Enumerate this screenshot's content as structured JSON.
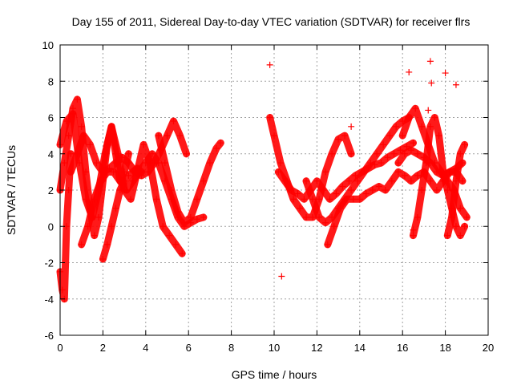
{
  "chart_data": {
    "type": "scatter",
    "title": "Day 155 of 2011, Sidereal Day-to-day VTEC variation (SDTVAR) for receiver flrs",
    "xlabel": "GPS time / hours",
    "ylabel": "SDTVAR / TECUs",
    "xlim": [
      0,
      20
    ],
    "ylim": [
      -6,
      10
    ],
    "xticks": [
      "0",
      "2",
      "4",
      "6",
      "8",
      "10",
      "12",
      "14",
      "16",
      "18",
      "20"
    ],
    "yticks": [
      "-6",
      "-4",
      "-2",
      "0",
      "2",
      "4",
      "6",
      "8",
      "10"
    ],
    "grid": true,
    "marker": "+",
    "color": "#ff0000",
    "series": [
      {
        "name": "SDTVAR",
        "tracks": [
          {
            "x": [
              0.0,
              0.3,
              0.6,
              0.9,
              1.2,
              1.5,
              1.8,
              2.1,
              2.4,
              2.7,
              3.0,
              3.3,
              3.6,
              3.9,
              4.2,
              4.5,
              4.8,
              5.1,
              5.4,
              5.7
            ],
            "y": [
              4.5,
              5.8,
              6.2,
              3.5,
              1.5,
              0.5,
              2.0,
              4.0,
              5.5,
              4.0,
              2.0,
              1.5,
              3.0,
              4.5,
              3.5,
              1.5,
              0.0,
              -0.5,
              -1.0,
              -1.5
            ]
          },
          {
            "x": [
              0.0,
              0.2,
              0.4,
              0.6,
              0.8,
              1.0,
              1.2,
              1.4,
              1.6,
              1.8,
              2.0,
              2.2,
              2.4,
              2.6,
              2.8,
              3.0,
              3.2
            ],
            "y": [
              2.0,
              3.5,
              5.0,
              6.5,
              7.0,
              5.5,
              3.0,
              1.0,
              -0.5,
              0.5,
              2.5,
              4.5,
              5.5,
              4.0,
              2.5,
              3.0,
              4.0
            ]
          },
          {
            "x": [
              0.5,
              0.8,
              1.1,
              1.4,
              1.7,
              2.0,
              2.3,
              2.6,
              2.9,
              3.2,
              3.5,
              3.8,
              4.1,
              4.4,
              4.7,
              5.0,
              5.3,
              5.6,
              5.9
            ],
            "y": [
              3.0,
              4.0,
              5.0,
              4.5,
              3.5,
              3.0,
              3.2,
              3.5,
              3.8,
              3.5,
              3.0,
              2.8,
              3.0,
              3.5,
              4.2,
              5.0,
              5.8,
              5.0,
              4.0
            ]
          },
          {
            "x": [
              1.0,
              1.3,
              1.6,
              1.9,
              2.2,
              2.5,
              2.8,
              3.1,
              3.4,
              3.7,
              4.0,
              4.3,
              4.6,
              4.9,
              5.2,
              5.5,
              5.8,
              6.1,
              6.4,
              6.7
            ],
            "y": [
              -1.0,
              0.0,
              1.5,
              2.5,
              3.0,
              3.0,
              2.5,
              2.0,
              2.5,
              3.0,
              3.5,
              4.0,
              3.5,
              2.5,
              1.5,
              0.5,
              0.0,
              0.2,
              0.4,
              0.5
            ]
          },
          {
            "x": [
              4.6,
              4.9,
              5.2,
              5.5,
              5.8,
              6.1,
              6.4,
              6.7,
              7.0,
              7.3,
              7.5
            ],
            "y": [
              5.0,
              3.5,
              2.0,
              0.8,
              0.2,
              0.5,
              1.5,
              2.5,
              3.5,
              4.3,
              4.6
            ]
          },
          {
            "x": [
              0.0,
              0.1,
              0.2,
              0.3,
              0.4,
              0.5
            ],
            "y": [
              -2.5,
              -3.5,
              -4.0,
              0.0,
              2.0,
              4.0
            ]
          },
          {
            "x": [
              2.0,
              2.2,
              2.4,
              2.6,
              2.8,
              3.0,
              3.2,
              3.4,
              3.6,
              3.8
            ],
            "y": [
              -1.8,
              -1.0,
              0.0,
              1.0,
              2.0,
              2.5,
              2.8,
              3.0,
              3.2,
              3.0
            ]
          },
          {
            "x": [
              9.8,
              10.0,
              10.3,
              10.6,
              10.9,
              11.2,
              11.5,
              11.8,
              12.1,
              12.4,
              12.7,
              13.0,
              13.3,
              13.6
            ],
            "y": [
              6.0,
              5.0,
              3.5,
              2.5,
              1.5,
              1.0,
              0.5,
              0.5,
              1.5,
              3.0,
              4.0,
              4.8,
              5.0,
              4.0
            ]
          },
          {
            "x": [
              10.2,
              10.5,
              10.8,
              11.1,
              11.4,
              11.7,
              12.0,
              12.3,
              12.6,
              12.9,
              13.2,
              13.5,
              13.8,
              14.1,
              14.4,
              14.7,
              15.0,
              15.3,
              15.6,
              15.9,
              16.2,
              16.5
            ],
            "y": [
              3.0,
              2.5,
              2.0,
              1.8,
              1.5,
              2.0,
              2.5,
              2.0,
              1.5,
              1.8,
              2.2,
              2.5,
              2.8,
              3.0,
              3.2,
              3.4,
              3.5,
              3.8,
              4.0,
              4.2,
              4.4,
              4.6
            ]
          },
          {
            "x": [
              11.5,
              11.8,
              12.1,
              12.4,
              12.7,
              13.0,
              13.3,
              13.6,
              13.9,
              14.2,
              14.5,
              14.8,
              15.1,
              15.4,
              15.7,
              16.0,
              16.3
            ],
            "y": [
              2.5,
              1.5,
              0.5,
              0.2,
              0.5,
              1.0,
              1.5,
              2.0,
              2.5,
              3.0,
              3.5,
              4.0,
              4.5,
              5.0,
              5.5,
              5.8,
              6.0
            ]
          },
          {
            "x": [
              12.5,
              12.8,
              13.1,
              13.4,
              13.7,
              14.0,
              14.3,
              14.6,
              14.9,
              15.2,
              15.5,
              15.8,
              16.1,
              16.4,
              16.7,
              17.0,
              17.3,
              17.6,
              17.9,
              18.2,
              18.5,
              18.8
            ],
            "y": [
              -1.0,
              0.0,
              1.0,
              1.5,
              1.5,
              1.5,
              1.8,
              2.0,
              2.2,
              2.0,
              2.5,
              3.0,
              2.8,
              2.5,
              2.8,
              3.0,
              2.5,
              2.0,
              2.5,
              3.0,
              3.0,
              2.5
            ]
          },
          {
            "x": [
              15.8,
              16.1,
              16.4,
              16.7,
              17.0,
              17.3,
              17.6,
              17.9,
              18.2,
              18.5,
              18.8
            ],
            "y": [
              3.5,
              4.0,
              4.2,
              4.0,
              3.8,
              3.5,
              3.0,
              2.8,
              3.0,
              3.2,
              3.5
            ]
          },
          {
            "x": [
              16.5,
              16.7,
              16.9,
              17.1,
              17.3,
              17.5,
              17.7,
              17.9,
              18.1,
              18.3,
              18.5,
              18.7,
              18.9
            ],
            "y": [
              -0.5,
              0.5,
              2.0,
              3.5,
              5.5,
              6.0,
              5.0,
              3.0,
              2.0,
              1.0,
              0.0,
              -0.5,
              0.0
            ]
          },
          {
            "x": [
              16.0,
              16.3,
              16.6,
              16.9,
              17.2,
              17.5,
              17.8,
              18.1,
              18.4,
              18.7,
              19.0
            ],
            "y": [
              5.0,
              6.0,
              6.5,
              5.5,
              4.5,
              3.5,
              3.0,
              2.5,
              2.0,
              1.0,
              0.5
            ]
          },
          {
            "x": [
              18.1,
              18.3,
              18.5,
              18.7,
              18.9
            ],
            "y": [
              -0.5,
              0.5,
              2.5,
              4.0,
              4.5
            ]
          }
        ],
        "outliers": {
          "x": [
            9.8,
            10.35,
            13.6,
            16.3,
            17.3,
            17.35,
            18.0,
            18.5,
            17.2,
            16.5
          ],
          "y": [
            8.9,
            -2.75,
            5.5,
            8.5,
            9.1,
            7.9,
            8.45,
            7.8,
            6.4,
            -0.2
          ]
        }
      }
    ]
  }
}
